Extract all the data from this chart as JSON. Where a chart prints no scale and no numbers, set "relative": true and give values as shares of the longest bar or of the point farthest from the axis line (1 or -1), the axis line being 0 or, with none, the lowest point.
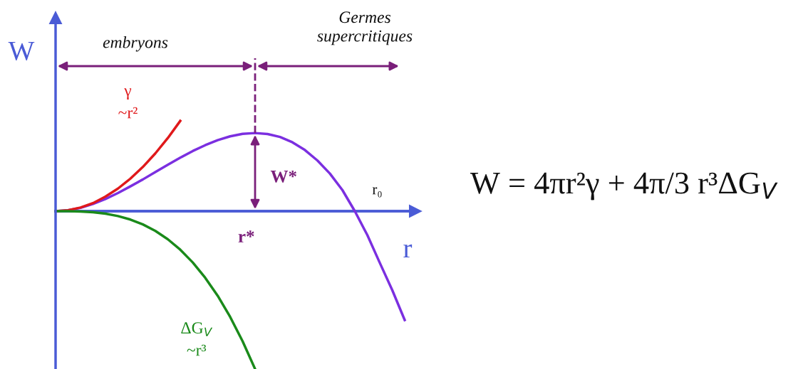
{
  "chart_data": {
    "type": "line",
    "relative": true,
    "xlabel": "r",
    "ylabel": "W",
    "grid": false,
    "categories": [
      null,
      null,
      null,
      null,
      null,
      null,
      null,
      null,
      null,
      null,
      null,
      null,
      null,
      null,
      null,
      null,
      null,
      null,
      null,
      null,
      null,
      null,
      null,
      null,
      null,
      null,
      null,
      null,
      null
    ],
    "series": [
      {
        "color": "#7b2fe0",
        "values": [
          0,
          0.006,
          0.021,
          0.046,
          0.077,
          0.115,
          0.157,
          0.201,
          0.248,
          0.294,
          0.339,
          0.381,
          0.418,
          0.45,
          0.474,
          0.49,
          0.495,
          0.489,
          0.47,
          0.436,
          0.387,
          0.321,
          0.238,
          0.134,
          0,
          -0.151,
          -0.327,
          -0.5,
          -0.69
        ]
      },
      {
        "name": "γ\n~r²",
        "color": "#e0191b",
        "values": [
          0,
          0.006,
          0.023,
          0.051,
          0.092,
          0.143,
          0.206,
          0.28,
          0.366,
          0.463,
          0.572,
          null,
          null,
          null,
          null,
          null,
          null,
          null,
          null,
          null,
          null,
          null,
          null,
          null,
          null,
          null,
          null,
          null,
          null
        ]
      },
      {
        "name": "ΔG$_{V}$\n~r³",
        "color": "#1a8a1a",
        "values": [
          0,
          -0.0002,
          -0.002,
          -0.007,
          -0.016,
          -0.031,
          -0.053,
          -0.084,
          -0.125,
          -0.178,
          -0.244,
          -0.325,
          -0.422,
          -0.536,
          -0.67,
          -0.824,
          -1,
          null,
          null,
          null,
          null,
          null,
          null,
          null,
          null,
          null,
          null,
          null,
          null
        ]
      }
    ],
    "ref_lines": [
      {
        "axis": "y",
        "value": 0,
        "color": "#4a5bd6"
      }
    ],
    "annotations": [
      "embryons",
      "Germes\nsupercritiques",
      "W*",
      "r₀",
      "W = 4πr²γ + 4π/3 r³ΔG$_{V}$",
      "r*"
    ]
  }
}
